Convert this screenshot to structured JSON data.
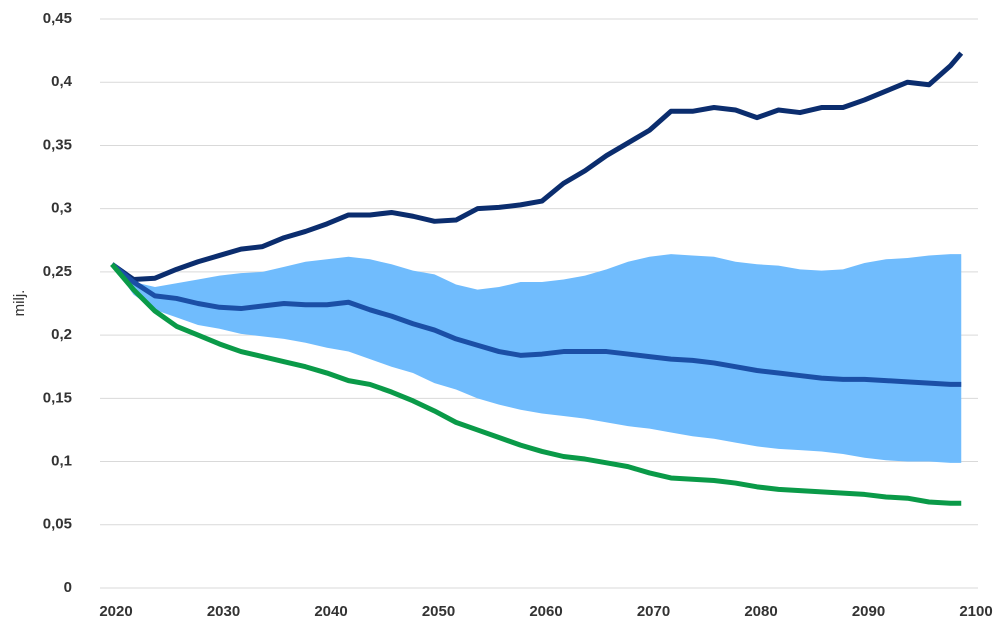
{
  "chart_data": {
    "type": "line",
    "y_label": "milj.",
    "x": [
      2020,
      2022,
      2024,
      2026,
      2028,
      2030,
      2032,
      2034,
      2036,
      2038,
      2040,
      2042,
      2044,
      2046,
      2048,
      2050,
      2052,
      2054,
      2056,
      2058,
      2060,
      2062,
      2064,
      2066,
      2068,
      2070,
      2072,
      2074,
      2076,
      2078,
      2080,
      2082,
      2084,
      2086,
      2088,
      2090,
      2092,
      2094,
      2096,
      2098,
      2099
    ],
    "band": {
      "color": "#70bcfd",
      "upper": [
        0.256,
        0.242,
        0.238,
        0.241,
        0.244,
        0.247,
        0.249,
        0.25,
        0.254,
        0.258,
        0.26,
        0.262,
        0.26,
        0.256,
        0.251,
        0.248,
        0.24,
        0.236,
        0.238,
        0.242,
        0.242,
        0.244,
        0.247,
        0.252,
        0.258,
        0.262,
        0.264,
        0.263,
        0.262,
        0.258,
        0.256,
        0.255,
        0.252,
        0.251,
        0.252,
        0.257,
        0.26,
        0.261,
        0.263,
        0.264,
        0.264
      ],
      "lower": [
        0.256,
        0.232,
        0.22,
        0.214,
        0.208,
        0.205,
        0.201,
        0.199,
        0.197,
        0.194,
        0.19,
        0.187,
        0.181,
        0.175,
        0.17,
        0.162,
        0.157,
        0.15,
        0.145,
        0.141,
        0.138,
        0.136,
        0.134,
        0.131,
        0.128,
        0.126,
        0.123,
        0.12,
        0.118,
        0.115,
        0.112,
        0.11,
        0.109,
        0.108,
        0.106,
        0.103,
        0.101,
        0.1,
        0.1,
        0.099,
        0.099
      ]
    },
    "series": [
      {
        "color": "#0b2d6e",
        "values": [
          0.256,
          0.244,
          0.245,
          0.252,
          0.258,
          0.263,
          0.268,
          0.27,
          0.277,
          0.282,
          0.288,
          0.295,
          0.295,
          0.297,
          0.294,
          0.29,
          0.291,
          0.3,
          0.301,
          0.303,
          0.306,
          0.32,
          0.33,
          0.342,
          0.352,
          0.362,
          0.377,
          0.377,
          0.38,
          0.378,
          0.372,
          0.378,
          0.376,
          0.38,
          0.38,
          0.386,
          0.393,
          0.4,
          0.398,
          0.413,
          0.423
        ]
      },
      {
        "color": "#1b4fa6",
        "values": [
          0.256,
          0.242,
          0.231,
          0.229,
          0.225,
          0.222,
          0.221,
          0.223,
          0.225,
          0.224,
          0.224,
          0.226,
          0.22,
          0.215,
          0.209,
          0.204,
          0.197,
          0.192,
          0.187,
          0.184,
          0.185,
          0.187,
          0.187,
          0.187,
          0.185,
          0.183,
          0.181,
          0.18,
          0.178,
          0.175,
          0.172,
          0.17,
          0.168,
          0.166,
          0.165,
          0.165,
          0.164,
          0.163,
          0.162,
          0.161,
          0.161
        ]
      },
      {
        "color": "#0a9a48",
        "values": [
          0.256,
          0.236,
          0.219,
          0.207,
          0.2,
          0.193,
          0.187,
          0.183,
          0.179,
          0.175,
          0.17,
          0.164,
          0.161,
          0.155,
          0.148,
          0.14,
          0.131,
          0.125,
          0.119,
          0.113,
          0.108,
          0.104,
          0.102,
          0.099,
          0.096,
          0.091,
          0.087,
          0.086,
          0.085,
          0.083,
          0.08,
          0.078,
          0.077,
          0.076,
          0.075,
          0.074,
          0.072,
          0.071,
          0.068,
          0.067,
          0.067
        ]
      }
    ],
    "xlim": [
      2020,
      2100
    ],
    "xticks": [
      2020,
      2030,
      2040,
      2050,
      2060,
      2070,
      2080,
      2090,
      2100
    ],
    "ylim": [
      0,
      0.45
    ],
    "yticks": [
      0,
      {
        "value": 0.05,
        "label": "0,05"
      },
      {
        "value": 0.1,
        "label": "0,1"
      },
      {
        "value": 0.15,
        "label": "0,15"
      },
      {
        "value": 0.2,
        "label": "0,2"
      },
      {
        "value": 0.25,
        "label": "0,25"
      },
      {
        "value": 0.3,
        "label": "0,3"
      },
      {
        "value": 0.35,
        "label": "0,35"
      },
      {
        "value": 0.4,
        "label": "0,4"
      },
      {
        "value": 0.45,
        "label": "0,45"
      }
    ],
    "grid": true
  }
}
